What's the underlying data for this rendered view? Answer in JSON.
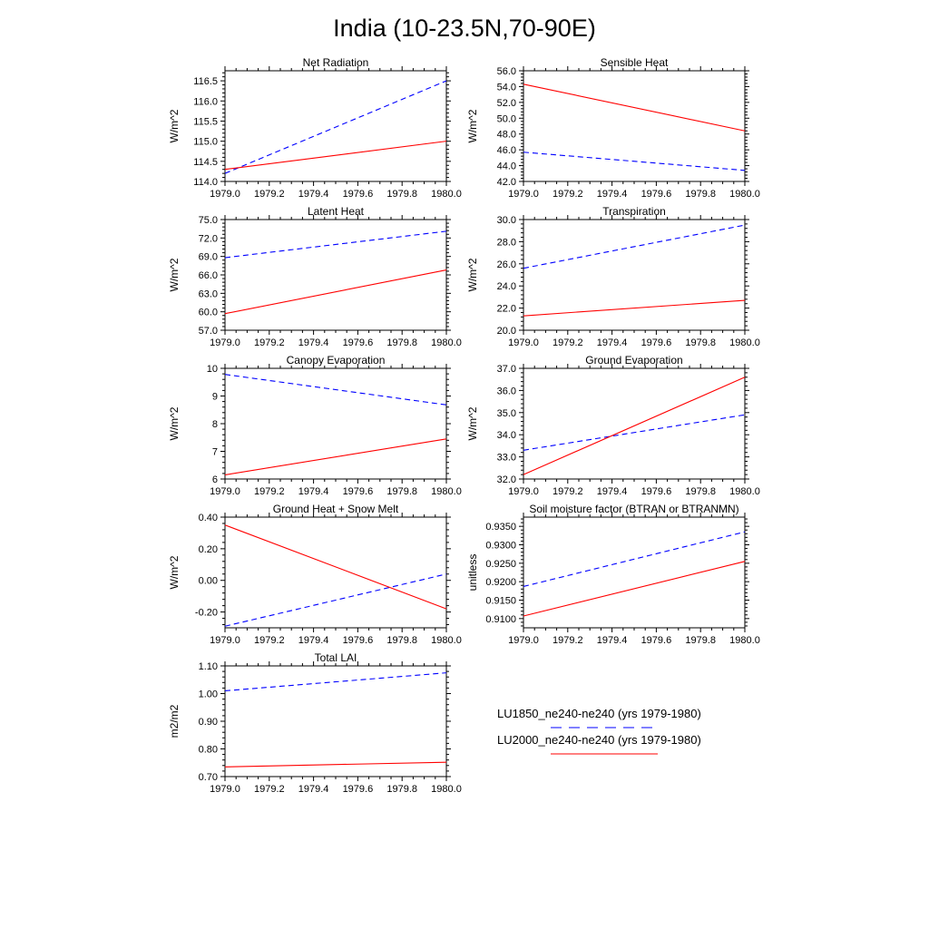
{
  "figure": {
    "title": "India (10-23.5N,70-90E)"
  },
  "series_styles": {
    "LU1850": {
      "color": "#0000ff",
      "dash": "dashed"
    },
    "LU2000": {
      "color": "#ff0000",
      "dash": "solid"
    }
  },
  "legend": {
    "entries": [
      {
        "label": "LU1850_ne240-ne240 (yrs 1979-1980)",
        "color": "#0000ff",
        "dash": "dashed"
      },
      {
        "label": "LU2000_ne240-ne240 (yrs 1979-1980)",
        "color": "#ff0000",
        "dash": "solid"
      }
    ]
  },
  "chart_data": [
    {
      "type": "line",
      "title": "Net Radiation",
      "ylabel": "W/m^2",
      "x": [
        1979.0,
        1980.0
      ],
      "xlim": [
        1979.0,
        1980.0
      ],
      "xticks": [
        "1979.0",
        "1979.2",
        "1979.4",
        "1979.6",
        "1979.8",
        "1980.0"
      ],
      "ylim": [
        114.0,
        116.75
      ],
      "yticks": [
        "114.0",
        "114.5",
        "115.0",
        "115.5",
        "116.0",
        "116.5"
      ],
      "series": [
        {
          "values": [
            114.2,
            116.5
          ],
          "color": "#0000ff",
          "dash": "dashed"
        },
        {
          "values": [
            114.3,
            115.0
          ],
          "color": "#ff0000",
          "dash": "solid"
        }
      ]
    },
    {
      "type": "line",
      "title": "Sensible Heat",
      "ylabel": "W/m^2",
      "x": [
        1979.0,
        1980.0
      ],
      "xlim": [
        1979.0,
        1980.0
      ],
      "xticks": [
        "1979.0",
        "1979.2",
        "1979.4",
        "1979.6",
        "1979.8",
        "1980.0"
      ],
      "ylim": [
        42.0,
        56.0
      ],
      "yticks": [
        "42.0",
        "44.0",
        "46.0",
        "48.0",
        "50.0",
        "52.0",
        "54.0",
        "56.0"
      ],
      "series": [
        {
          "values": [
            45.7,
            43.4
          ],
          "color": "#0000ff",
          "dash": "dashed"
        },
        {
          "values": [
            54.3,
            48.4
          ],
          "color": "#ff0000",
          "dash": "solid"
        }
      ]
    },
    {
      "type": "line",
      "title": "Latent Heat",
      "ylabel": "W/m^2",
      "x": [
        1979.0,
        1980.0
      ],
      "xlim": [
        1979.0,
        1980.0
      ],
      "xticks": [
        "1979.0",
        "1979.2",
        "1979.4",
        "1979.6",
        "1979.8",
        "1980.0"
      ],
      "ylim": [
        57.0,
        75.0
      ],
      "yticks": [
        "57.0",
        "60.0",
        "63.0",
        "66.0",
        "69.0",
        "72.0",
        "75.0"
      ],
      "series": [
        {
          "values": [
            68.8,
            73.1
          ],
          "color": "#0000ff",
          "dash": "dashed"
        },
        {
          "values": [
            59.7,
            66.8
          ],
          "color": "#ff0000",
          "dash": "solid"
        }
      ]
    },
    {
      "type": "line",
      "title": "Transpiration",
      "ylabel": "W/m^2",
      "x": [
        1979.0,
        1980.0
      ],
      "xlim": [
        1979.0,
        1980.0
      ],
      "xticks": [
        "1979.0",
        "1979.2",
        "1979.4",
        "1979.6",
        "1979.8",
        "1980.0"
      ],
      "ylim": [
        20.0,
        30.0
      ],
      "yticks": [
        "20.0",
        "22.0",
        "24.0",
        "26.0",
        "28.0",
        "30.0"
      ],
      "series": [
        {
          "values": [
            25.6,
            29.5
          ],
          "color": "#0000ff",
          "dash": "dashed"
        },
        {
          "values": [
            21.3,
            22.7
          ],
          "color": "#ff0000",
          "dash": "solid"
        }
      ]
    },
    {
      "type": "line",
      "title": "Canopy Evaporation",
      "ylabel": "W/m^2",
      "x": [
        1979.0,
        1980.0
      ],
      "xlim": [
        1979.0,
        1980.0
      ],
      "xticks": [
        "1979.0",
        "1979.2",
        "1979.4",
        "1979.6",
        "1979.8",
        "1980.0"
      ],
      "ylim": [
        6.0,
        10.0
      ],
      "yticks": [
        "6",
        "7",
        "8",
        "9",
        "10"
      ],
      "series": [
        {
          "values": [
            9.78,
            8.68
          ],
          "color": "#0000ff",
          "dash": "dashed"
        },
        {
          "values": [
            6.15,
            7.45
          ],
          "color": "#ff0000",
          "dash": "solid"
        }
      ]
    },
    {
      "type": "line",
      "title": "Ground Evaporation",
      "ylabel": "W/m^2",
      "x": [
        1979.0,
        1980.0
      ],
      "xlim": [
        1979.0,
        1980.0
      ],
      "xticks": [
        "1979.0",
        "1979.2",
        "1979.4",
        "1979.6",
        "1979.8",
        "1980.0"
      ],
      "ylim": [
        32.0,
        37.0
      ],
      "yticks": [
        "32.0",
        "33.0",
        "34.0",
        "35.0",
        "36.0",
        "37.0"
      ],
      "series": [
        {
          "values": [
            33.3,
            34.9
          ],
          "color": "#0000ff",
          "dash": "dashed"
        },
        {
          "values": [
            32.2,
            36.6
          ],
          "color": "#ff0000",
          "dash": "solid"
        }
      ]
    },
    {
      "type": "line",
      "title": "Ground Heat + Snow Melt",
      "ylabel": "W/m^2",
      "x": [
        1979.0,
        1980.0
      ],
      "xlim": [
        1979.0,
        1980.0
      ],
      "xticks": [
        "1979.0",
        "1979.2",
        "1979.4",
        "1979.6",
        "1979.8",
        "1980.0"
      ],
      "ylim": [
        -0.3,
        0.4
      ],
      "yticks": [
        "-0.20",
        "0.00",
        "0.20",
        "0.40"
      ],
      "ytick_values": [
        -0.2,
        0.0,
        0.2,
        0.4
      ],
      "series": [
        {
          "values": [
            -0.29,
            0.04
          ],
          "color": "#0000ff",
          "dash": "dashed"
        },
        {
          "values": [
            0.35,
            -0.18
          ],
          "color": "#ff0000",
          "dash": "solid"
        }
      ]
    },
    {
      "type": "line",
      "title": "Soil moisture factor (BTRAN or BTRANMN)",
      "ylabel": "unitless",
      "x": [
        1979.0,
        1980.0
      ],
      "xlim": [
        1979.0,
        1980.0
      ],
      "xticks": [
        "1979.0",
        "1979.2",
        "1979.4",
        "1979.6",
        "1979.8",
        "1980.0"
      ],
      "ylim": [
        0.9075,
        0.9375
      ],
      "yticks": [
        "0.9100",
        "0.9150",
        "0.9200",
        "0.9250",
        "0.9300",
        "0.9350"
      ],
      "ytick_values": [
        0.91,
        0.915,
        0.92,
        0.925,
        0.93,
        0.935
      ],
      "series": [
        {
          "values": [
            0.9187,
            0.9335
          ],
          "color": "#0000ff",
          "dash": "dashed"
        },
        {
          "values": [
            0.9107,
            0.9255
          ],
          "color": "#ff0000",
          "dash": "solid"
        }
      ]
    },
    {
      "type": "line",
      "title": "Total LAI",
      "ylabel": "m2/m2",
      "x": [
        1979.0,
        1980.0
      ],
      "xlim": [
        1979.0,
        1980.0
      ],
      "xticks": [
        "1979.0",
        "1979.2",
        "1979.4",
        "1979.6",
        "1979.8",
        "1980.0"
      ],
      "ylim": [
        0.7,
        1.1
      ],
      "yticks": [
        "0.70",
        "0.80",
        "0.90",
        "1.00",
        "1.10"
      ],
      "series": [
        {
          "values": [
            1.01,
            1.075
          ],
          "color": "#0000ff",
          "dash": "dashed"
        },
        {
          "values": [
            0.735,
            0.752
          ],
          "color": "#ff0000",
          "dash": "solid"
        }
      ]
    }
  ]
}
